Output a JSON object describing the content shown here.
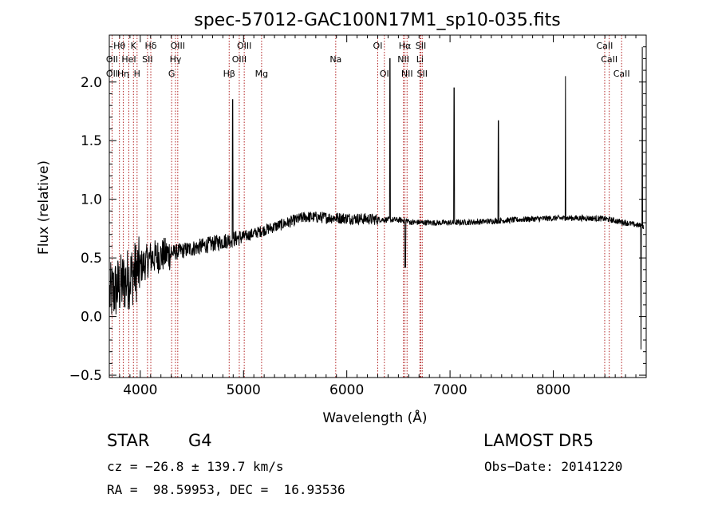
{
  "chart_data": {
    "type": "line",
    "title": "spec-57012-GAC100N17M1_sp10-035.fits",
    "xlabel": "Wavelength (Å)",
    "ylabel": "Flux (relative)",
    "xlim": [
      3700,
      8900
    ],
    "ylim": [
      -0.52,
      2.4
    ],
    "xticks": [
      4000,
      5000,
      6000,
      7000,
      8000
    ],
    "yticks": [
      -0.5,
      0.0,
      0.5,
      1.0,
      1.5,
      2.0
    ],
    "xtick_labels": [
      "4000",
      "5000",
      "6000",
      "7000",
      "8000"
    ],
    "ytick_labels": [
      "−0.5",
      "0.0",
      "0.5",
      "1.0",
      "1.5",
      "2.0"
    ],
    "grid": false,
    "line_color": "#000000",
    "marker_color": "#b22222",
    "lines": [
      {
        "name": "Hθ",
        "wavelength": 3798,
        "row": 1
      },
      {
        "name": "OII",
        "wavelength": 3727,
        "row": 2
      },
      {
        "name": "OII",
        "wavelength": 3727,
        "row": 3
      },
      {
        "name": "Hη",
        "wavelength": 3835,
        "row": 3
      },
      {
        "name": "K",
        "wavelength": 3934,
        "row": 1
      },
      {
        "name": "HeI",
        "wavelength": 3889,
        "row": 2
      },
      {
        "name": "H",
        "wavelength": 3969,
        "row": 3
      },
      {
        "name": "Hδ",
        "wavelength": 4102,
        "row": 1
      },
      {
        "name": "SII",
        "wavelength": 4070,
        "row": 2
      },
      {
        "name": "OIII",
        "wavelength": 4363,
        "row": 1
      },
      {
        "name": "Hγ",
        "wavelength": 4341,
        "row": 2
      },
      {
        "name": "G",
        "wavelength": 4304,
        "row": 3
      },
      {
        "name": "OIII",
        "wavelength": 5007,
        "row": 1
      },
      {
        "name": "OIII",
        "wavelength": 4959,
        "row": 2
      },
      {
        "name": "Hβ",
        "wavelength": 4861,
        "row": 3
      },
      {
        "name": "Mg",
        "wavelength": 5175,
        "row": 3
      },
      {
        "name": "Na",
        "wavelength": 5893,
        "row": 2
      },
      {
        "name": "OI",
        "wavelength": 6300,
        "row": 1
      },
      {
        "name": "OI",
        "wavelength": 6364,
        "row": 3
      },
      {
        "name": "Hα",
        "wavelength": 6563,
        "row": 1
      },
      {
        "name": "NII",
        "wavelength": 6548,
        "row": 2
      },
      {
        "name": "NII",
        "wavelength": 6584,
        "row": 3
      },
      {
        "name": "SII",
        "wavelength": 6717,
        "row": 1
      },
      {
        "name": "Li",
        "wavelength": 6708,
        "row": 2
      },
      {
        "name": "SII",
        "wavelength": 6731,
        "row": 3
      },
      {
        "name": "CaII",
        "wavelength": 8498,
        "row": 1
      },
      {
        "name": "CaII",
        "wavelength": 8542,
        "row": 2
      },
      {
        "name": "CaII",
        "wavelength": 8662,
        "row": 3
      }
    ],
    "spikes": [
      {
        "x": 4895,
        "y": 1.85
      },
      {
        "x": 6418,
        "y": 2.2
      },
      {
        "x": 7040,
        "y": 1.95
      },
      {
        "x": 7468,
        "y": 1.67
      },
      {
        "x": 8118,
        "y": 2.05
      },
      {
        "x": 8862,
        "y": 2.3
      },
      {
        "x": 8850,
        "y": -0.28
      }
    ]
  },
  "info": {
    "class": "STAR",
    "subclass": "G4",
    "survey": "LAMOST DR5",
    "cz": "cz = −26.8 ± 139.7 km/s",
    "obs_date": "Obs−Date: 20141220",
    "radec": "RA =  98.59953, DEC =  16.93536"
  }
}
